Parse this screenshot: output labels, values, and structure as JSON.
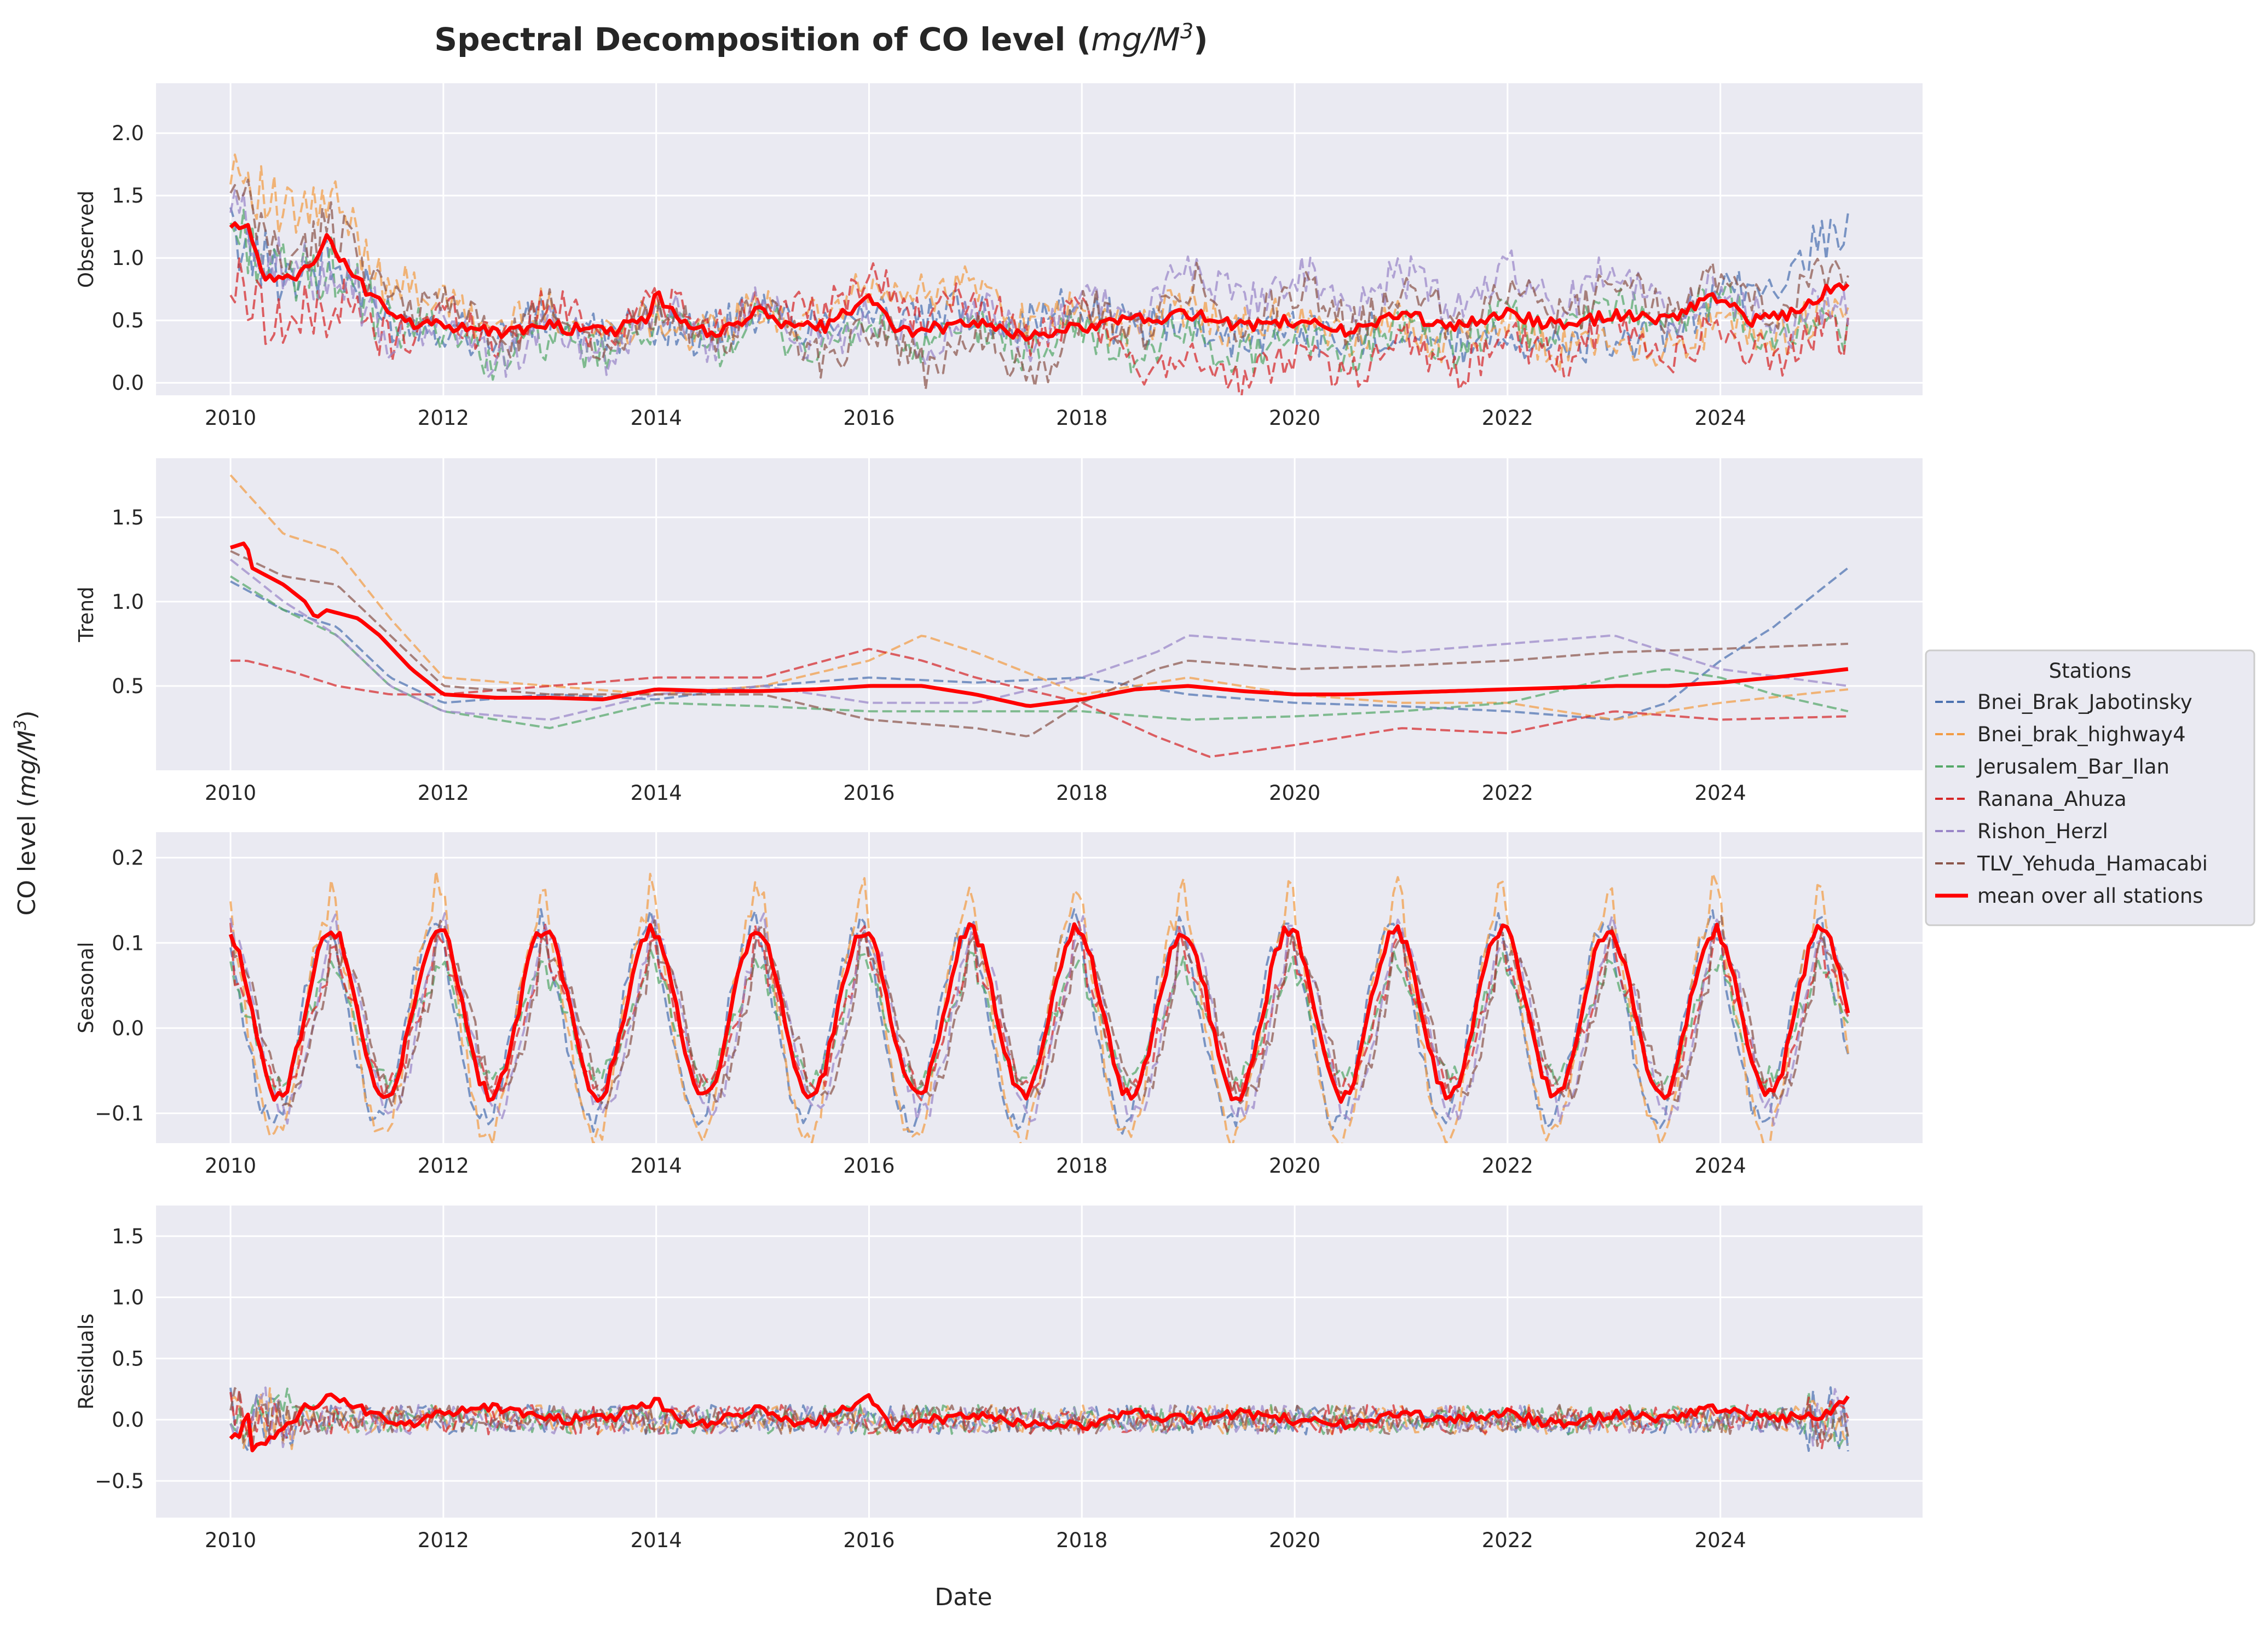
{
  "chart_data": {
    "type": "line",
    "title_prefix": "Spectral Decomposition of CO level (",
    "title_unit": "mg/M",
    "title_exp": "3",
    "title_suffix": ")",
    "xlabel": "Date",
    "ylabel_prefix": "CO level (",
    "ylabel_unit": "mg/M",
    "ylabel_exp": "3",
    "ylabel_suffix": ")",
    "x_start": 2010.0,
    "x_end": 2025.2,
    "x_ticks": [
      "2010",
      "2012",
      "2014",
      "2016",
      "2018",
      "2020",
      "2022",
      "2024"
    ],
    "grid": true,
    "legend": {
      "title": "Stations",
      "placement": "right",
      "entries": [
        "Bnei_Brak_Jabotinsky",
        "Bnei_brak_highway4",
        "Jerusalem_Bar_Ilan",
        "Ranana_Ahuza",
        "Rishon_Herzl",
        "TLV_Yehuda_Hamacabi",
        "mean over all stations"
      ]
    },
    "series_colors": [
      "#4c72b0",
      "#f39c44",
      "#55a868",
      "#d62728",
      "#9a86c8",
      "#8c564b"
    ],
    "mean_color": "#ff0000",
    "panels": [
      {
        "name": "Observed",
        "ylim": [
          -0.1,
          2.4
        ],
        "y_ticks": [
          "0.0",
          "0.5",
          "1.0",
          "1.5",
          "2.0"
        ],
        "mean": [
          [
            2010.0,
            1.25
          ],
          [
            2010.15,
            1.3
          ],
          [
            2010.3,
            0.85
          ],
          [
            2010.5,
            0.8
          ],
          [
            2010.7,
            0.9
          ],
          [
            2010.9,
            1.15
          ],
          [
            2011.1,
            0.95
          ],
          [
            2011.3,
            0.7
          ],
          [
            2011.6,
            0.5
          ],
          [
            2012.0,
            0.45
          ],
          [
            2012.5,
            0.4
          ],
          [
            2013.0,
            0.45
          ],
          [
            2013.5,
            0.4
          ],
          [
            2013.9,
            0.5
          ],
          [
            2014.0,
            0.7
          ],
          [
            2014.3,
            0.45
          ],
          [
            2014.6,
            0.4
          ],
          [
            2015.0,
            0.6
          ],
          [
            2015.2,
            0.45
          ],
          [
            2015.6,
            0.45
          ],
          [
            2016.0,
            0.7
          ],
          [
            2016.3,
            0.4
          ],
          [
            2016.7,
            0.45
          ],
          [
            2017.0,
            0.5
          ],
          [
            2017.5,
            0.35
          ],
          [
            2018.0,
            0.45
          ],
          [
            2018.5,
            0.5
          ],
          [
            2019.0,
            0.55
          ],
          [
            2019.5,
            0.45
          ],
          [
            2020.0,
            0.5
          ],
          [
            2020.5,
            0.4
          ],
          [
            2021.0,
            0.55
          ],
          [
            2021.5,
            0.45
          ],
          [
            2022.0,
            0.55
          ],
          [
            2022.5,
            0.45
          ],
          [
            2023.0,
            0.55
          ],
          [
            2023.5,
            0.5
          ],
          [
            2024.0,
            0.7
          ],
          [
            2024.3,
            0.5
          ],
          [
            2024.7,
            0.55
          ],
          [
            2025.0,
            0.75
          ],
          [
            2025.2,
            0.8
          ]
        ]
      },
      {
        "name": "Trend",
        "ylim": [
          0.0,
          1.85
        ],
        "y_ticks": [
          "0.5",
          "1.0",
          "1.5"
        ],
        "series": [
          [
            [
              2010.0,
              1.12
            ],
            [
              2010.5,
              0.95
            ],
            [
              2011.0,
              0.85
            ],
            [
              2011.5,
              0.55
            ],
            [
              2012.0,
              0.4
            ],
            [
              2013.0,
              0.45
            ],
            [
              2014.0,
              0.42
            ],
            [
              2015.0,
              0.5
            ],
            [
              2016.0,
              0.55
            ],
            [
              2017.0,
              0.52
            ],
            [
              2018.0,
              0.55
            ],
            [
              2019.0,
              0.45
            ],
            [
              2020.0,
              0.4
            ],
            [
              2021.0,
              0.38
            ],
            [
              2022.0,
              0.35
            ],
            [
              2023.0,
              0.3
            ],
            [
              2023.5,
              0.4
            ],
            [
              2024.0,
              0.65
            ],
            [
              2024.5,
              0.85
            ],
            [
              2025.2,
              1.2
            ]
          ],
          [
            [
              2010.0,
              1.75
            ],
            [
              2010.5,
              1.4
            ],
            [
              2011.0,
              1.3
            ],
            [
              2011.5,
              0.9
            ],
            [
              2012.0,
              0.55
            ],
            [
              2013.0,
              0.5
            ],
            [
              2014.0,
              0.45
            ],
            [
              2015.0,
              0.5
            ],
            [
              2016.0,
              0.65
            ],
            [
              2016.5,
              0.8
            ],
            [
              2017.0,
              0.7
            ],
            [
              2018.0,
              0.45
            ],
            [
              2019.0,
              0.55
            ],
            [
              2020.0,
              0.45
            ],
            [
              2021.0,
              0.4
            ],
            [
              2022.0,
              0.4
            ],
            [
              2023.0,
              0.3
            ],
            [
              2024.0,
              0.4
            ],
            [
              2025.2,
              0.48
            ]
          ],
          [
            [
              2010.0,
              1.15
            ],
            [
              2010.5,
              0.95
            ],
            [
              2011.0,
              0.8
            ],
            [
              2011.5,
              0.5
            ],
            [
              2012.0,
              0.35
            ],
            [
              2013.0,
              0.25
            ],
            [
              2014.0,
              0.4
            ],
            [
              2015.0,
              0.38
            ],
            [
              2016.0,
              0.35
            ],
            [
              2017.0,
              0.35
            ],
            [
              2018.0,
              0.35
            ],
            [
              2019.0,
              0.3
            ],
            [
              2020.0,
              0.32
            ],
            [
              2021.0,
              0.35
            ],
            [
              2022.0,
              0.4
            ],
            [
              2023.0,
              0.55
            ],
            [
              2023.5,
              0.6
            ],
            [
              2024.0,
              0.55
            ],
            [
              2024.5,
              0.45
            ],
            [
              2025.2,
              0.35
            ]
          ],
          [
            [
              2010.15,
              0.65
            ],
            [
              2010.6,
              0.58
            ],
            [
              2011.0,
              0.5
            ],
            [
              2011.5,
              0.45
            ],
            [
              2012.0,
              0.45
            ],
            [
              2013.0,
              0.5
            ],
            [
              2014.0,
              0.55
            ],
            [
              2015.0,
              0.55
            ],
            [
              2016.0,
              0.72
            ],
            [
              2016.5,
              0.65
            ],
            [
              2017.0,
              0.55
            ],
            [
              2018.0,
              0.4
            ],
            [
              2018.7,
              0.2
            ],
            [
              2019.2,
              0.08
            ],
            [
              2020.0,
              0.15
            ],
            [
              2021.0,
              0.25
            ],
            [
              2022.0,
              0.22
            ],
            [
              2023.0,
              0.35
            ],
            [
              2024.0,
              0.3
            ],
            [
              2025.2,
              0.32
            ]
          ],
          [
            [
              2010.0,
              1.25
            ],
            [
              2010.5,
              1.0
            ],
            [
              2011.0,
              0.8
            ],
            [
              2011.5,
              0.5
            ],
            [
              2012.0,
              0.35
            ],
            [
              2013.0,
              0.3
            ],
            [
              2014.0,
              0.45
            ],
            [
              2015.0,
              0.5
            ],
            [
              2016.0,
              0.4
            ],
            [
              2017.0,
              0.4
            ],
            [
              2018.0,
              0.55
            ],
            [
              2018.7,
              0.7
            ],
            [
              2019.0,
              0.8
            ],
            [
              2020.0,
              0.75
            ],
            [
              2021.0,
              0.7
            ],
            [
              2022.0,
              0.75
            ],
            [
              2023.0,
              0.8
            ],
            [
              2024.0,
              0.6
            ],
            [
              2025.2,
              0.5
            ]
          ],
          [
            [
              2010.0,
              1.3
            ],
            [
              2010.5,
              1.15
            ],
            [
              2011.0,
              1.1
            ],
            [
              2011.5,
              0.8
            ],
            [
              2012.0,
              0.5
            ],
            [
              2013.0,
              0.45
            ],
            [
              2014.0,
              0.45
            ],
            [
              2015.0,
              0.45
            ],
            [
              2016.0,
              0.3
            ],
            [
              2017.0,
              0.25
            ],
            [
              2017.5,
              0.2
            ],
            [
              2018.0,
              0.4
            ],
            [
              2018.7,
              0.6
            ],
            [
              2019.0,
              0.65
            ],
            [
              2020.0,
              0.6
            ],
            [
              2021.0,
              0.62
            ],
            [
              2022.0,
              0.65
            ],
            [
              2023.0,
              0.7
            ],
            [
              2024.0,
              0.72
            ],
            [
              2025.2,
              0.75
            ]
          ]
        ],
        "mean": [
          [
            2010.0,
            1.32
          ],
          [
            2010.15,
            1.35
          ],
          [
            2010.2,
            1.2
          ],
          [
            2010.5,
            1.1
          ],
          [
            2010.7,
            1.0
          ],
          [
            2010.8,
            0.9
          ],
          [
            2010.9,
            0.95
          ],
          [
            2011.2,
            0.9
          ],
          [
            2011.4,
            0.8
          ],
          [
            2011.7,
            0.6
          ],
          [
            2012.0,
            0.45
          ],
          [
            2012.5,
            0.43
          ],
          [
            2013.0,
            0.43
          ],
          [
            2013.5,
            0.42
          ],
          [
            2014.0,
            0.48
          ],
          [
            2014.5,
            0.47
          ],
          [
            2015.0,
            0.47
          ],
          [
            2015.5,
            0.48
          ],
          [
            2016.0,
            0.5
          ],
          [
            2016.5,
            0.5
          ],
          [
            2017.0,
            0.45
          ],
          [
            2017.5,
            0.38
          ],
          [
            2018.0,
            0.42
          ],
          [
            2018.5,
            0.48
          ],
          [
            2019.0,
            0.5
          ],
          [
            2019.5,
            0.47
          ],
          [
            2020.0,
            0.45
          ],
          [
            2020.5,
            0.45
          ],
          [
            2021.0,
            0.46
          ],
          [
            2021.5,
            0.47
          ],
          [
            2022.0,
            0.48
          ],
          [
            2022.5,
            0.49
          ],
          [
            2023.0,
            0.5
          ],
          [
            2023.5,
            0.5
          ],
          [
            2024.0,
            0.52
          ],
          [
            2024.5,
            0.55
          ],
          [
            2025.2,
            0.6
          ]
        ]
      },
      {
        "name": "Seasonal",
        "ylim": [
          -0.135,
          0.23
        ],
        "y_ticks": [
          "−0.1",
          "0.0",
          "0.1",
          "0.2"
        ],
        "mean_min": -0.08,
        "mean_max": 0.115,
        "peak_phase": 0.95,
        "trough_phase": 0.45
      },
      {
        "name": "Residuals",
        "ylim": [
          -0.8,
          1.75
        ],
        "y_ticks": [
          "−0.5",
          "0.0",
          "0.5",
          "1.0",
          "1.5"
        ],
        "mean": [
          [
            2010.0,
            -0.15
          ],
          [
            2010.1,
            -0.1
          ],
          [
            2010.15,
            0.15
          ],
          [
            2010.2,
            -0.25
          ],
          [
            2010.5,
            -0.1
          ],
          [
            2010.7,
            0.1
          ],
          [
            2011.0,
            0.2
          ],
          [
            2011.3,
            0.05
          ],
          [
            2011.6,
            -0.05
          ],
          [
            2012.0,
            0.05
          ],
          [
            2012.5,
            0.1
          ],
          [
            2013.0,
            0.0
          ],
          [
            2013.5,
            0.0
          ],
          [
            2014.0,
            0.15
          ],
          [
            2014.3,
            -0.05
          ],
          [
            2014.6,
            0.0
          ],
          [
            2015.0,
            0.1
          ],
          [
            2015.3,
            -0.05
          ],
          [
            2015.6,
            0.0
          ],
          [
            2016.0,
            0.2
          ],
          [
            2016.2,
            -0.05
          ],
          [
            2016.6,
            0.0
          ],
          [
            2017.0,
            0.05
          ],
          [
            2017.5,
            -0.05
          ],
          [
            2018.0,
            -0.05
          ],
          [
            2018.5,
            0.05
          ],
          [
            2019.0,
            0.0
          ],
          [
            2019.5,
            0.05
          ],
          [
            2020.0,
            0.0
          ],
          [
            2020.5,
            -0.05
          ],
          [
            2021.0,
            0.05
          ],
          [
            2021.5,
            0.0
          ],
          [
            2022.0,
            0.05
          ],
          [
            2022.5,
            -0.05
          ],
          [
            2023.0,
            0.05
          ],
          [
            2023.5,
            0.0
          ],
          [
            2024.0,
            0.1
          ],
          [
            2024.5,
            0.0
          ],
          [
            2025.0,
            0.05
          ],
          [
            2025.2,
            0.2
          ]
        ]
      }
    ]
  }
}
